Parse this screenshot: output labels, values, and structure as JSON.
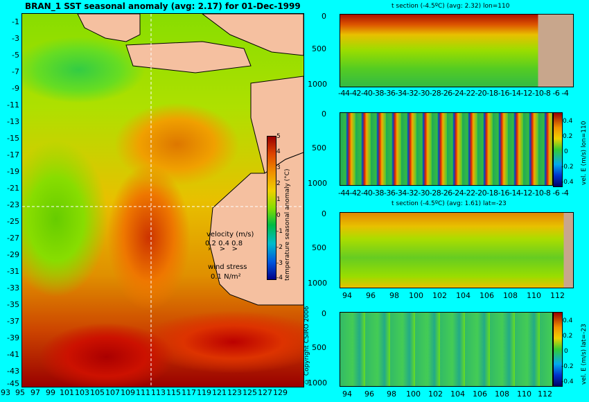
{
  "map": {
    "title": "BRAN_1  SST seasonal anomaly (avg: 2.17) for 01-Dec-1999",
    "lat_ticks": [
      "-1",
      "-3",
      "-5",
      "-7",
      "-9",
      "-11",
      "-13",
      "-15",
      "-17",
      "-19",
      "-21",
      "-23",
      "-25",
      "-27",
      "-29",
      "-31",
      "-33",
      "-35",
      "-37",
      "-39",
      "-41",
      "-43",
      "-45"
    ],
    "lon_ticks": [
      "93",
      "95",
      "97",
      "99",
      "101",
      "103",
      "105",
      "107",
      "109",
      "111",
      "113",
      "115",
      "117",
      "119",
      "121",
      "123",
      "125",
      "127",
      "129"
    ],
    "colorbar_ticks": [
      "5",
      "4",
      "3",
      "2",
      "1",
      "0",
      "-1",
      "-2",
      "-3",
      "-4"
    ],
    "colorbar_label": "temperature seasonal anomaly (°C)",
    "legend": {
      "velocity_label": "velocity (m/s)",
      "velocity_scale": "0.2 0.4 0.8",
      "wind_label": "wind stress",
      "wind_scale": "0.1 N/m²"
    }
  },
  "panels": [
    {
      "title": "t section (-4.5ºC) (avg: 2.32) lon=110",
      "y_ticks": [
        "0",
        "500",
        "1000"
      ],
      "x_ticks": [
        "-44",
        "-42",
        "-40",
        "-38",
        "-36",
        "-34",
        "-32",
        "-30",
        "-28",
        "-26",
        "-24",
        "-22",
        "-20",
        "-18",
        "-16",
        "-14",
        "-12",
        "-10",
        "-8",
        "-6",
        "-4"
      ]
    },
    {
      "title": "",
      "y_ticks": [
        "0",
        "500",
        "1000"
      ],
      "x_ticks": [
        "-44",
        "-42",
        "-40",
        "-38",
        "-36",
        "-34",
        "-32",
        "-30",
        "-28",
        "-26",
        "-24",
        "-22",
        "-20",
        "-18",
        "-16",
        "-14",
        "-12",
        "-10",
        "-8",
        "-6",
        "-4"
      ],
      "colorbar_ticks": [
        "0.4",
        "0.2",
        "0",
        "-0.2",
        "-0.4"
      ],
      "colorbar_label": "vel. E (m/s) lon=110"
    },
    {
      "title": "t section (-4.5ºC) (avg: 1.61) lat=-23",
      "y_ticks": [
        "0",
        "500",
        "1000"
      ],
      "x_ticks": [
        "94",
        "96",
        "98",
        "100",
        "102",
        "104",
        "106",
        "108",
        "110",
        "112"
      ]
    },
    {
      "title": "",
      "y_ticks": [
        "0",
        "500",
        "1000"
      ],
      "x_ticks": [
        "94",
        "96",
        "98",
        "100",
        "102",
        "104",
        "106",
        "108",
        "110",
        "112"
      ],
      "colorbar_ticks": [
        "0.4",
        "0.2",
        "0",
        "-0.2",
        "-0.4"
      ],
      "colorbar_label": "vel. E (m/s) lat=-23"
    }
  ],
  "copyright": "© Copyright CSIRO 2006"
}
